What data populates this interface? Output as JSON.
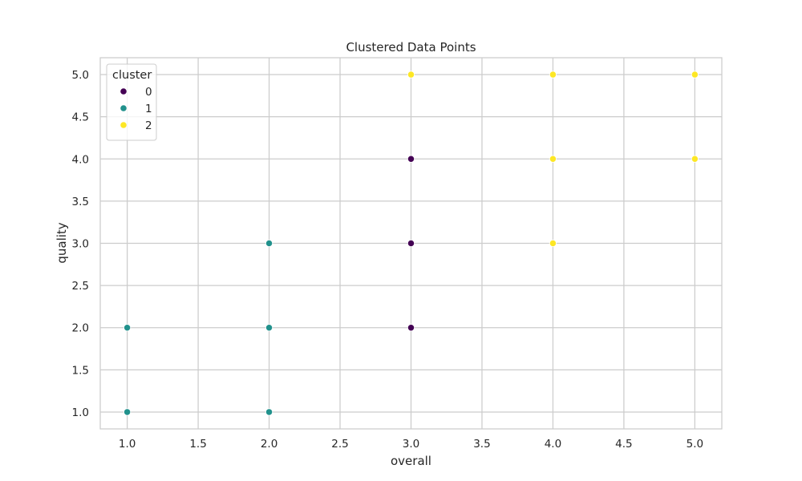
{
  "chart_data": {
    "type": "scatter",
    "title": "Clustered Data Points",
    "xlabel": "overall",
    "ylabel": "quality",
    "xlim": [
      0.81,
      5.19
    ],
    "ylim": [
      0.8,
      5.2
    ],
    "xticks": [
      "1.0",
      "1.5",
      "2.0",
      "2.5",
      "3.0",
      "3.5",
      "4.0",
      "4.5",
      "5.0"
    ],
    "yticks": [
      "1.0",
      "1.5",
      "2.0",
      "2.5",
      "3.0",
      "3.5",
      "4.0",
      "4.5",
      "5.0"
    ],
    "grid": true,
    "legend": {
      "title": "cluster",
      "placement": "upper-left"
    },
    "series": [
      {
        "name": "0",
        "color": "#440154",
        "points": [
          [
            3,
            4
          ],
          [
            3,
            3
          ],
          [
            3,
            2
          ]
        ]
      },
      {
        "name": "1",
        "color": "#21918c",
        "points": [
          [
            1,
            2
          ],
          [
            1,
            1
          ],
          [
            2,
            3
          ],
          [
            2,
            2
          ],
          [
            2,
            1
          ]
        ]
      },
      {
        "name": "2",
        "color": "#fde725",
        "points": [
          [
            3,
            5
          ],
          [
            4,
            5
          ],
          [
            5,
            5
          ],
          [
            4,
            4
          ],
          [
            5,
            4
          ],
          [
            4,
            3
          ]
        ]
      }
    ]
  }
}
